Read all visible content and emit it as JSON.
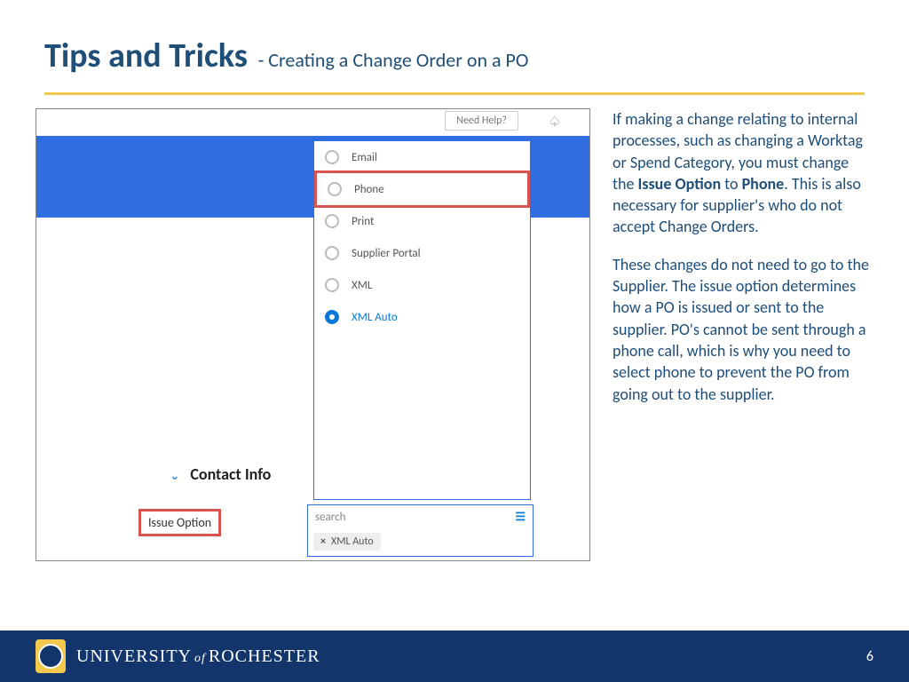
{
  "header": {
    "title_main": "Tips and Tricks",
    "title_sub": "- Creating a Change Order on a PO"
  },
  "screenshot": {
    "help_button": "Need Help?",
    "dropdown_options": [
      {
        "label": "Email",
        "selected": false,
        "highlighted": false
      },
      {
        "label": "Phone",
        "selected": false,
        "highlighted": true
      },
      {
        "label": "Print",
        "selected": false,
        "highlighted": false
      },
      {
        "label": "Supplier Portal",
        "selected": false,
        "highlighted": false
      },
      {
        "label": "XML",
        "selected": false,
        "highlighted": false
      },
      {
        "label": "XML Auto",
        "selected": true,
        "highlighted": false
      }
    ],
    "section_title": "Contact Info",
    "issue_label": "Issue Option",
    "search_placeholder": "search",
    "chip_label": "XML Auto"
  },
  "body": {
    "para1_pre": "If making a change relating to internal processes, such as changing a Worktag or Spend Category, you must change the ",
    "bold1": "Issue Option",
    "mid": " to ",
    "bold2": "Phone",
    "para1_post": ". This is also necessary for supplier's who do not accept Change Orders.",
    "para2": "These changes do not need to go to the Supplier.  The issue option determines how a PO is issued or sent to the supplier.  PO's cannot be sent through a phone call, which is why you need to select phone to prevent the PO from going out to the supplier."
  },
  "footer": {
    "university": "UNIVERSITY",
    "of": "of",
    "rochester": "ROCHESTER",
    "page": "6"
  },
  "colors": {
    "brand_blue": "#1f4e79",
    "accent_yellow": "#f2c94c",
    "band_blue": "#2f6de0",
    "highlight_red": "#d9534f",
    "footer_blue": "#12356b"
  }
}
